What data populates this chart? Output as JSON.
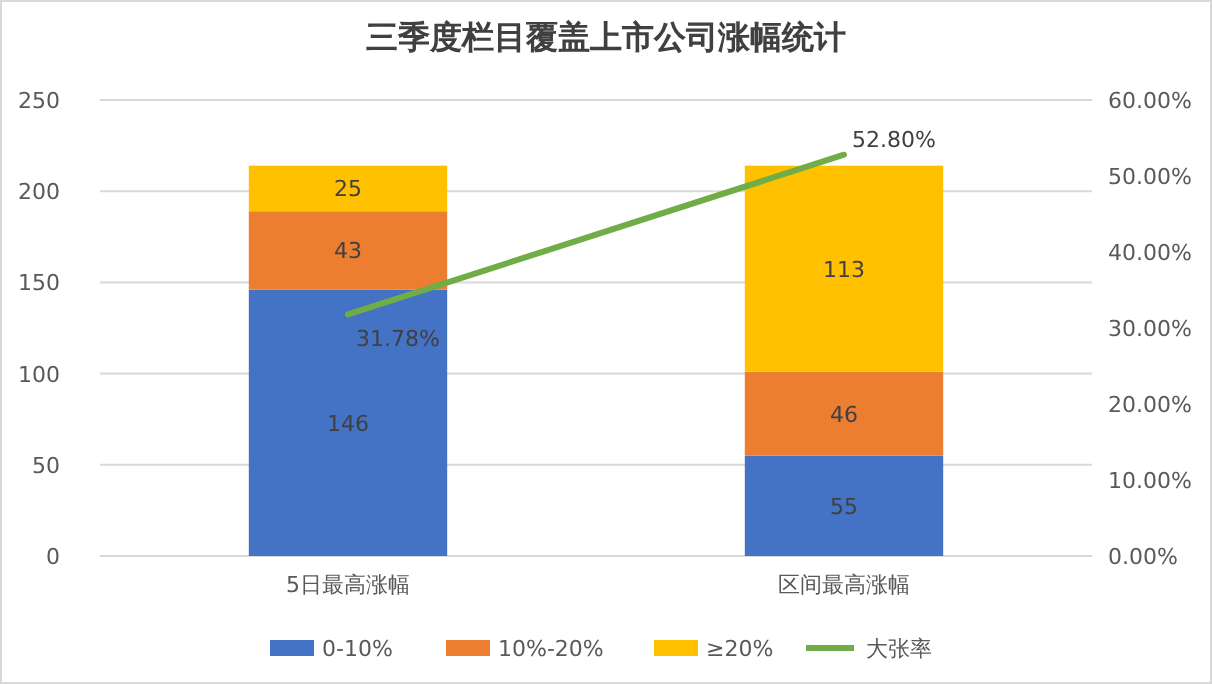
{
  "chart_data": {
    "type": "bar",
    "title": "三季度栏目覆盖上市公司涨幅统计",
    "categories": [
      "5日最高涨幅",
      "区间最高涨幅"
    ],
    "stacked": true,
    "data_labels": true,
    "grid": "y",
    "legend": "bottom",
    "ylim": [
      0,
      250
    ],
    "yticks": [
      0,
      50,
      100,
      150,
      200,
      250
    ],
    "y2lim": [
      0,
      60
    ],
    "y2ticks": [
      {
        "value": 0,
        "label": "0.00%"
      },
      {
        "value": 10,
        "label": "10.00%"
      },
      {
        "value": 20,
        "label": "20.00%"
      },
      {
        "value": 30,
        "label": "30.00%"
      },
      {
        "value": 40,
        "label": "40.00%"
      },
      {
        "value": 50,
        "label": "50.00%"
      },
      {
        "value": 60,
        "label": "60.00%"
      }
    ],
    "series": [
      {
        "name": "0-10%",
        "color": "#4472c4",
        "values": [
          146,
          55
        ]
      },
      {
        "name": "10%-20%",
        "color": "#ed7d31",
        "values": [
          43,
          46
        ]
      },
      {
        "name": "≥20%",
        "color": "#ffc000",
        "values": [
          25,
          113
        ]
      },
      {
        "name": "大张率",
        "type": "line",
        "axis": "y2",
        "color": "#70ad47",
        "values": [
          31.78,
          52.8
        ],
        "value_labels": [
          "31.78%",
          "52.80%"
        ]
      }
    ]
  }
}
